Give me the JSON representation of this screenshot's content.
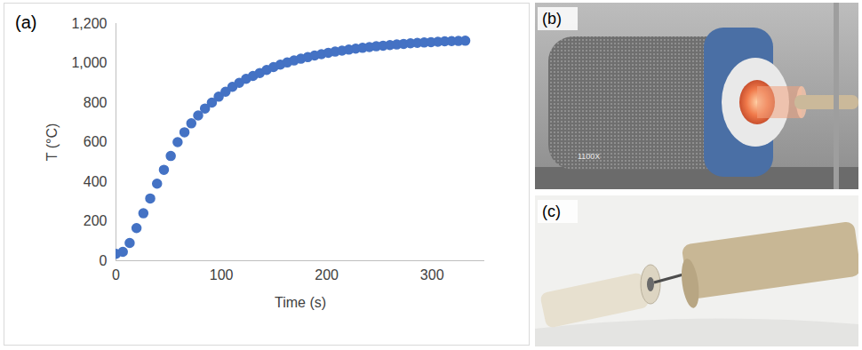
{
  "chart_data": {
    "type": "scatter",
    "panel_label": "(a)",
    "x_label": "Time (s)",
    "y_label": "T (°C)",
    "x": [
      0,
      6.5,
      13,
      19.5,
      26,
      32.5,
      39,
      45.5,
      52,
      58.5,
      65,
      71.5,
      78,
      84.5,
      91,
      97.5,
      104,
      110.5,
      117,
      123.5,
      130,
      136.5,
      143,
      149.5,
      156,
      162.5,
      169,
      175.5,
      182,
      188.5,
      195,
      201.5,
      208,
      214.5,
      221,
      227.5,
      234,
      240.5,
      247,
      253.5,
      260,
      266.5,
      273,
      279.5,
      286,
      292.5,
      299,
      305.5,
      312,
      318.5,
      325,
      331.5
    ],
    "values": [
      35,
      45,
      90,
      165,
      240,
      315,
      390,
      460,
      530,
      600,
      650,
      695,
      735,
      770,
      800,
      830,
      855,
      880,
      900,
      920,
      935,
      950,
      965,
      980,
      992,
      1003,
      1013,
      1022,
      1030,
      1038,
      1045,
      1052,
      1058,
      1063,
      1068,
      1073,
      1077,
      1081,
      1085,
      1088,
      1091,
      1094,
      1097,
      1100,
      1102,
      1104,
      1106,
      1108,
      1110,
      1111,
      1112,
      1113
    ],
    "color": "#4472c4",
    "marker": "circle",
    "xlim": [
      0,
      350
    ],
    "xticks": [
      0,
      100,
      200,
      300
    ],
    "ylim": [
      0,
      1200
    ],
    "yticks": [
      0,
      200,
      400,
      600,
      800,
      1000,
      1200
    ],
    "grid": false
  },
  "photos": [
    {
      "label": "(b)",
      "text": "1100X"
    },
    {
      "label": "(c)"
    }
  ]
}
